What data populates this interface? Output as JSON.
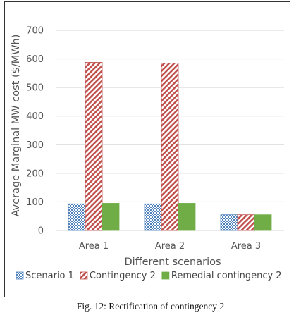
{
  "chart_data": {
    "type": "bar",
    "categories": [
      "Area 1",
      "Area 2",
      "Area 3"
    ],
    "series": [
      {
        "name": "Scenario 1",
        "values": [
          93,
          93,
          55
        ],
        "color": "#4f81bd",
        "pattern": "checker"
      },
      {
        "name": "Contingency 2",
        "values": [
          588,
          585,
          55
        ],
        "color": "#c0504d",
        "pattern": "diagonal"
      },
      {
        "name": "Remedial contingency 2",
        "values": [
          95,
          95,
          55
        ],
        "color": "#70ad47",
        "pattern": "solid"
      }
    ],
    "ylabel": "Average Marginal MW cost ($/MWh)",
    "xlabel": "Different scenarios",
    "ylim": [
      0,
      700
    ],
    "yticks": [
      0,
      100,
      200,
      300,
      400,
      500,
      600,
      700
    ],
    "grid": true,
    "legend_position": "bottom"
  },
  "caption": "Fig. 12: Rectification of contingency 2"
}
